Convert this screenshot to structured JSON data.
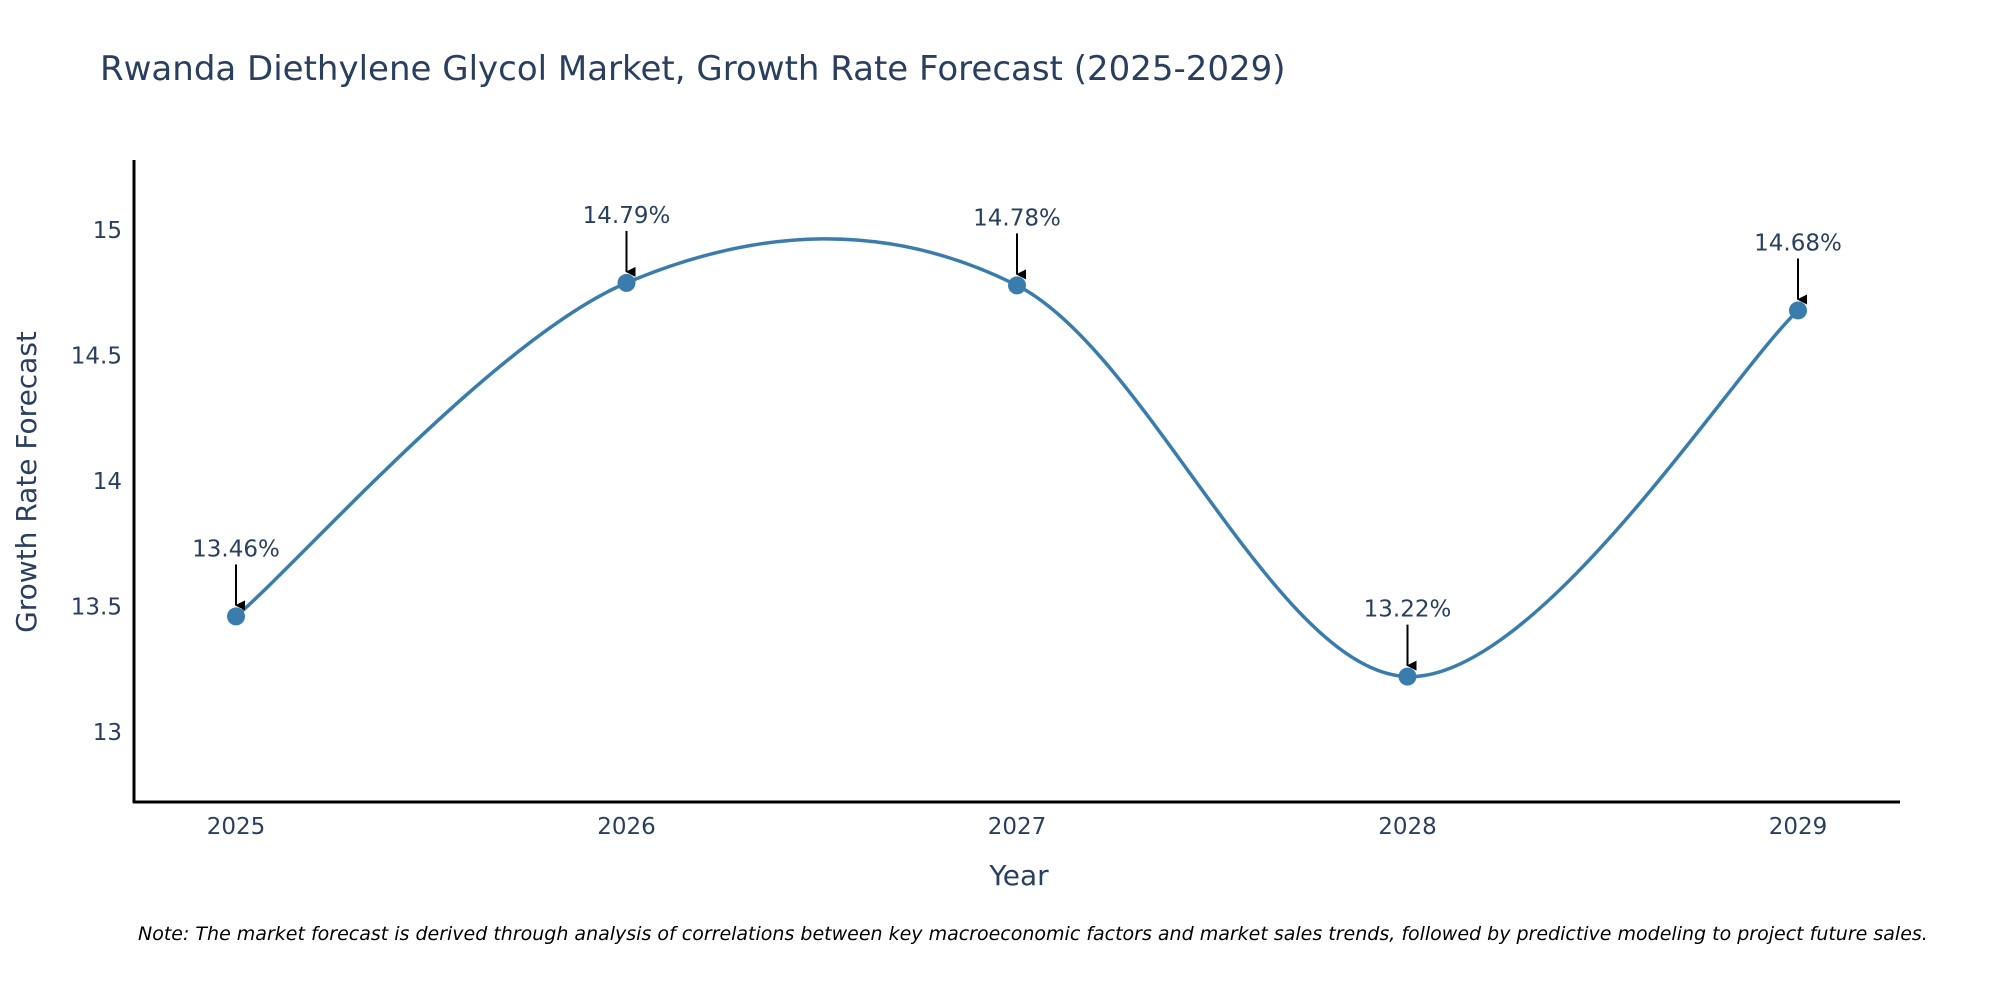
{
  "chart_data": {
    "type": "line",
    "title": "Rwanda Diethylene Glycol Market, Growth Rate Forecast (2025-2029)",
    "xlabel": "Year",
    "ylabel": "Growth Rate Forecast",
    "categories": [
      "2025",
      "2026",
      "2027",
      "2028",
      "2029"
    ],
    "series": [
      {
        "name": "Growth Rate Forecast",
        "values": [
          13.46,
          14.79,
          14.78,
          13.22,
          14.68
        ],
        "labels": [
          "13.46%",
          "14.79%",
          "14.78%",
          "13.22%",
          "14.68%"
        ]
      }
    ],
    "ylim": [
      12.72,
      15.28
    ],
    "yticks": [
      13,
      13.5,
      14,
      14.5,
      15
    ],
    "ytick_labels": [
      "13",
      "13.5",
      "14",
      "14.5",
      "15"
    ],
    "grid": false,
    "line_shape": "spline",
    "line_color": "#3a7dad",
    "marker_color": "#3a7dad",
    "annotation_arrow_color": "#000000",
    "text_color": "#2a3f5f",
    "note": "Note: The market forecast is derived through analysis of correlations between key macroeconomic factors and market sales trends, followed by predictive modeling to project future sales."
  }
}
